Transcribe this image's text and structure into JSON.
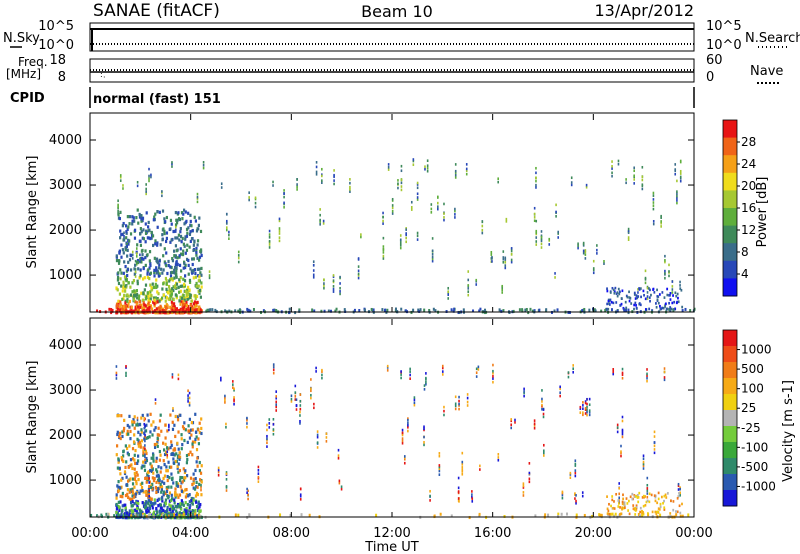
{
  "header": {
    "station": "SANAE (fitACF)",
    "beam": "Beam 10",
    "date": "13/Apr/2012"
  },
  "side_labels": {
    "nsky": "N.Sky",
    "nsearch": "N.Search",
    "freq_line1": "Freq.",
    "freq_line2": "[MHz]",
    "nave": "Nave",
    "cpid": "CPID",
    "mode": "normal (fast) 151"
  },
  "noise_panel": {
    "left_ticks": [
      "10^5",
      "10^0"
    ],
    "right_ticks": [
      "10^5",
      "10^0"
    ]
  },
  "freq_panel": {
    "left_ticks": [
      "18",
      "8"
    ],
    "right_ticks": [
      "60",
      "0"
    ]
  },
  "time_axis": {
    "ticks": [
      "00:00",
      "04:00",
      "08:00",
      "12:00",
      "16:00",
      "20:00",
      "00:00"
    ],
    "label": "Time UT"
  },
  "chart_data": [
    {
      "type": "heatmap",
      "name": "power",
      "ylabel": "Slant Range [km]",
      "yticks": [
        1000,
        2000,
        3000,
        4000
      ],
      "ylim": [
        180,
        4600
      ],
      "xlim_hours": [
        0,
        24
      ],
      "colorbar": {
        "label": "Power [dB]",
        "ticks": [
          "4",
          "8",
          "12",
          "16",
          "20",
          "24",
          "28"
        ],
        "range": [
          0,
          30
        ],
        "colors": [
          "#1010f0",
          "#2848b8",
          "#3a6d8a",
          "#3f8a5a",
          "#5fae3c",
          "#a6c832",
          "#f0dc1c",
          "#f5a018",
          "#f06418",
          "#e81414"
        ]
      }
    },
    {
      "type": "heatmap",
      "name": "velocity",
      "ylabel": "Slant Range [km]",
      "yticks": [
        1000,
        2000,
        3000,
        4000
      ],
      "ylim": [
        180,
        4600
      ],
      "xlim_hours": [
        0,
        24
      ],
      "colorbar": {
        "label": "Velocity [m s-1]",
        "ticks": [
          "1000",
          "500",
          "100",
          "25",
          "-25",
          "-100",
          "-500",
          "-1000"
        ],
        "colors": [
          "#1818d8",
          "#2a5ab0",
          "#2f8a6a",
          "#3aa83a",
          "#74cc3c",
          "#b4b4b4",
          "#f0d010",
          "#f6aa16",
          "#f07c18",
          "#ee4c18",
          "#e41616"
        ]
      }
    }
  ]
}
